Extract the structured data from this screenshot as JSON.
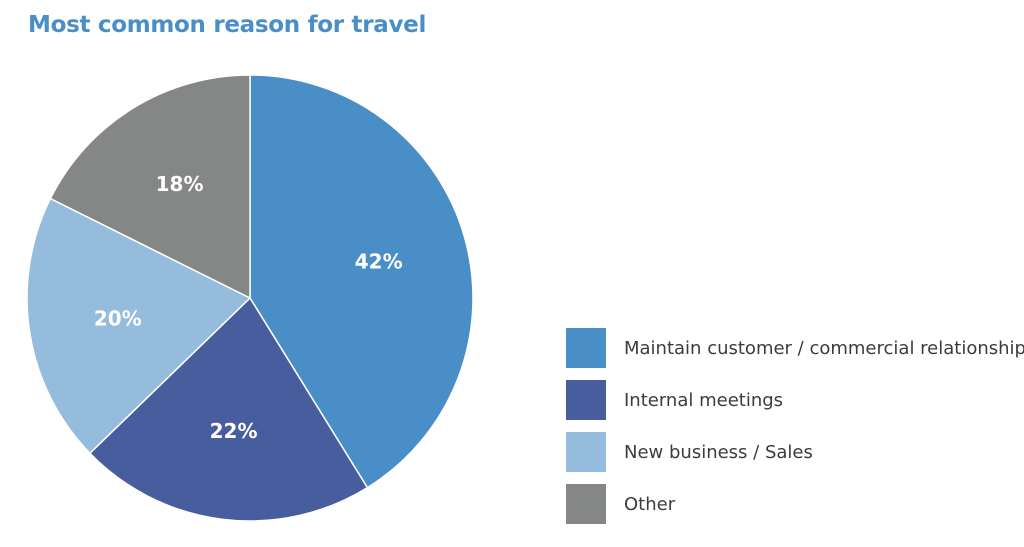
{
  "title": "Most common reason for travel",
  "chart_data": {
    "type": "pie",
    "title": "Most common reason for travel",
    "slices": [
      {
        "name": "Maintain customer / commercial relationships",
        "value": 42,
        "label": "42%",
        "color": "#4a8ec7"
      },
      {
        "name": "Internal meetings",
        "value": 22,
        "label": "22%",
        "color": "#485d9e"
      },
      {
        "name": "New business / Sales",
        "value": 20,
        "label": "20%",
        "color": "#95bcdd"
      },
      {
        "name": "Other",
        "value": 18,
        "label": "18%",
        "color": "#858786"
      }
    ],
    "start_angle": "12 o'clock",
    "direction": "clockwise",
    "legend_position": "bottom-right"
  }
}
